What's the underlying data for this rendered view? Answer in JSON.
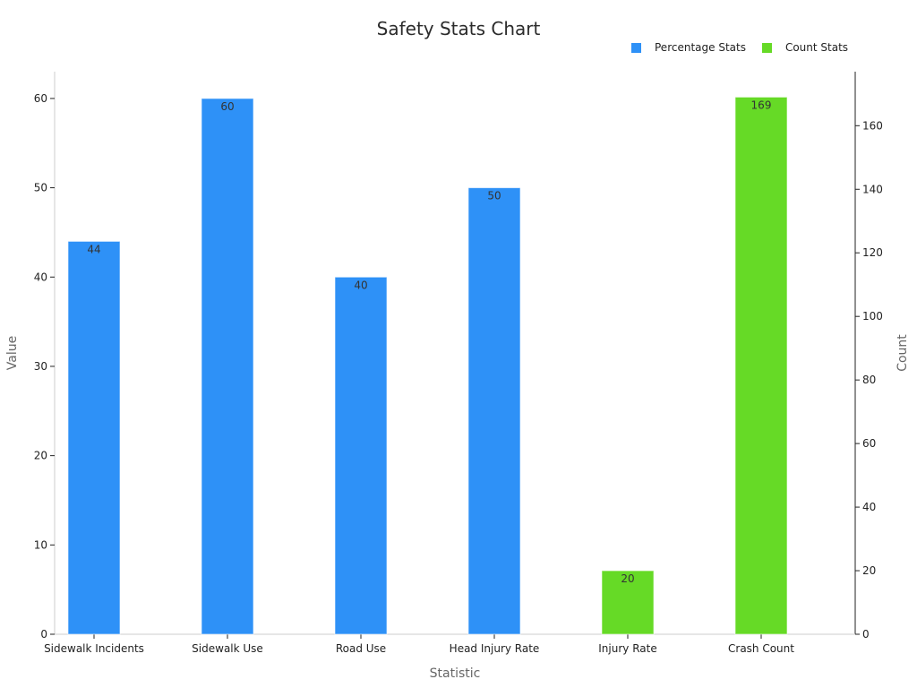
{
  "chart_data": {
    "type": "bar",
    "title": "Safety Stats Chart",
    "xlabel": "Statistic",
    "ylabel": "Value",
    "y2label": "Count",
    "categories": [
      "Sidewalk Incidents",
      "Sidewalk Use",
      "Road Use",
      "Head Injury Rate",
      "Injury Rate",
      "Crash Count"
    ],
    "series": [
      {
        "name": "Percentage Stats",
        "axis": "left",
        "color": "#2e91f7",
        "values": [
          44,
          60,
          40,
          50,
          null,
          null
        ]
      },
      {
        "name": "Count Stats",
        "axis": "right",
        "color": "#66da26",
        "values": [
          null,
          null,
          null,
          null,
          20,
          169
        ]
      }
    ],
    "ylim": [
      0,
      63
    ],
    "y2lim": [
      0,
      177
    ],
    "yticks": [
      0,
      10,
      20,
      30,
      40,
      50,
      60
    ],
    "y2ticks": [
      0,
      20,
      40,
      60,
      80,
      100,
      120,
      140,
      160
    ],
    "legend_position": "top-right",
    "grid": false
  }
}
